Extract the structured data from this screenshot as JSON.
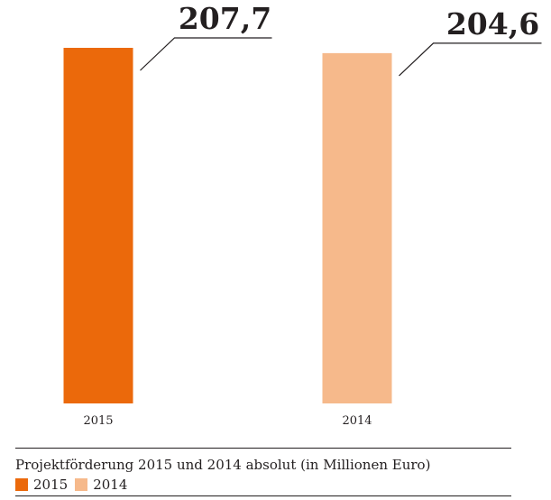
{
  "chart_data": {
    "type": "bar",
    "categories": [
      "2015",
      "2014"
    ],
    "values": [
      207.7,
      204.6
    ],
    "value_labels": [
      "207,7",
      "204,6"
    ],
    "colors": [
      "#eb690b",
      "#f6b98b"
    ],
    "title": "Projektförderung 2015 und 2014 absolut (in Millionen Euro)",
    "legend": [
      {
        "label": "2015",
        "color": "#eb690b"
      },
      {
        "label": "2014",
        "color": "#f6b98b"
      }
    ],
    "legend_position": "bottom-left",
    "xlabel": "",
    "ylabel": "",
    "ylim": [
      0,
      207.7
    ],
    "grid": false
  }
}
